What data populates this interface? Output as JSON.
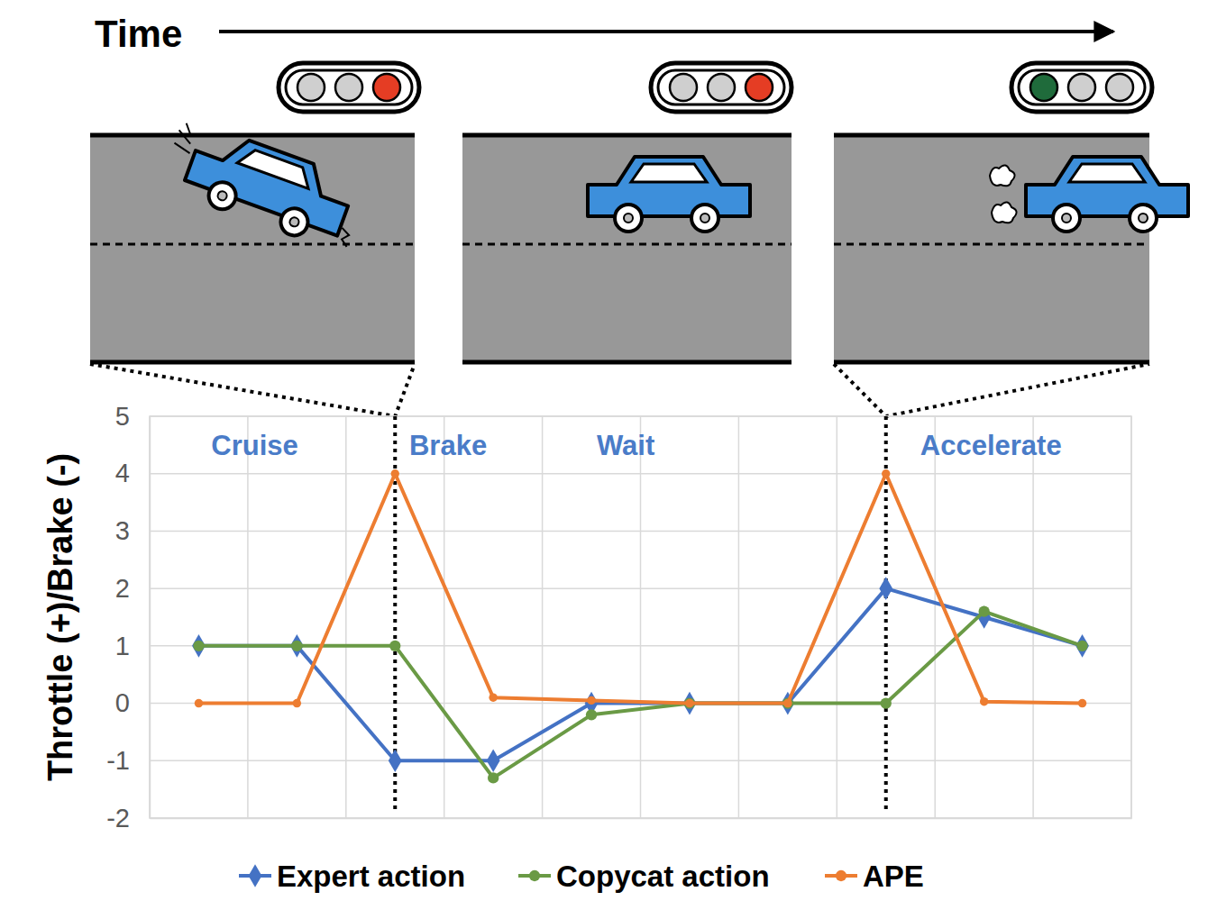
{
  "chart_data": {
    "type": "line",
    "ylabel": "Throttle (+)/Brake (-)",
    "annotations": [
      "Time",
      "Cruise",
      "Brake",
      "Wait",
      "Accelerate"
    ],
    "categories": [
      null,
      null,
      null,
      null,
      null,
      null,
      null,
      null,
      null,
      null
    ],
    "series": [
      {
        "name": "Expert action",
        "color": "#4472c4",
        "marker": "diamond",
        "values": [
          1,
          1,
          -1,
          -1,
          0,
          0,
          0,
          2,
          1.5,
          1
        ]
      },
      {
        "name": "Copycat action",
        "color": "#6a9a45",
        "marker": "circle",
        "values": [
          1,
          1,
          1,
          -1.3,
          -0.2,
          0,
          0,
          0,
          1.6,
          1
        ]
      },
      {
        "name": "APE",
        "color": "#ed7d31",
        "marker": "circle",
        "values": [
          0,
          0,
          4,
          0.1,
          0.05,
          0,
          0,
          4,
          0.03,
          0
        ]
      }
    ],
    "ylim": [
      -2,
      5
    ],
    "yticks": [
      -2,
      -1,
      0,
      1,
      2,
      3,
      4,
      5
    ],
    "grid": true,
    "legend": "bottom",
    "tick_labels": "y"
  }
}
